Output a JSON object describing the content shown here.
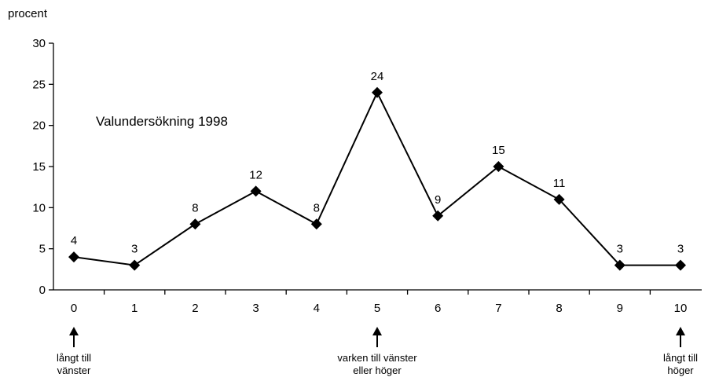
{
  "chart_data": {
    "type": "line",
    "title": "",
    "ylabel": "procent",
    "xlabel": "",
    "annotation": "Valundersökning 1998",
    "x": [
      0,
      1,
      2,
      3,
      4,
      5,
      6,
      7,
      8,
      9,
      10
    ],
    "xtick_labels": [
      "0",
      "1",
      "2",
      "3",
      "4",
      "5",
      "6",
      "7",
      "8",
      "9",
      "10"
    ],
    "yticks": [
      0,
      5,
      10,
      15,
      20,
      25,
      30
    ],
    "ytick_labels": [
      "0",
      "5",
      "10",
      "15",
      "20",
      "25",
      "30"
    ],
    "ylim": [
      0,
      30
    ],
    "grid": false,
    "series": [
      {
        "values": [
          4,
          3,
          8,
          12,
          8,
          24,
          9,
          15,
          11,
          3,
          3
        ],
        "color": "#000000",
        "marker": "diamond"
      }
    ],
    "data_labels": [
      "4",
      "3",
      "8",
      "12",
      "8",
      "24",
      "9",
      "15",
      "11",
      "3",
      "3"
    ],
    "arrow_annotations": [
      {
        "x": 0,
        "lines": [
          "långt till",
          "vänster"
        ]
      },
      {
        "x": 5,
        "lines": [
          "varken till vänster",
          "eller höger"
        ]
      },
      {
        "x": 10,
        "lines": [
          "långt till",
          "höger"
        ]
      }
    ]
  }
}
